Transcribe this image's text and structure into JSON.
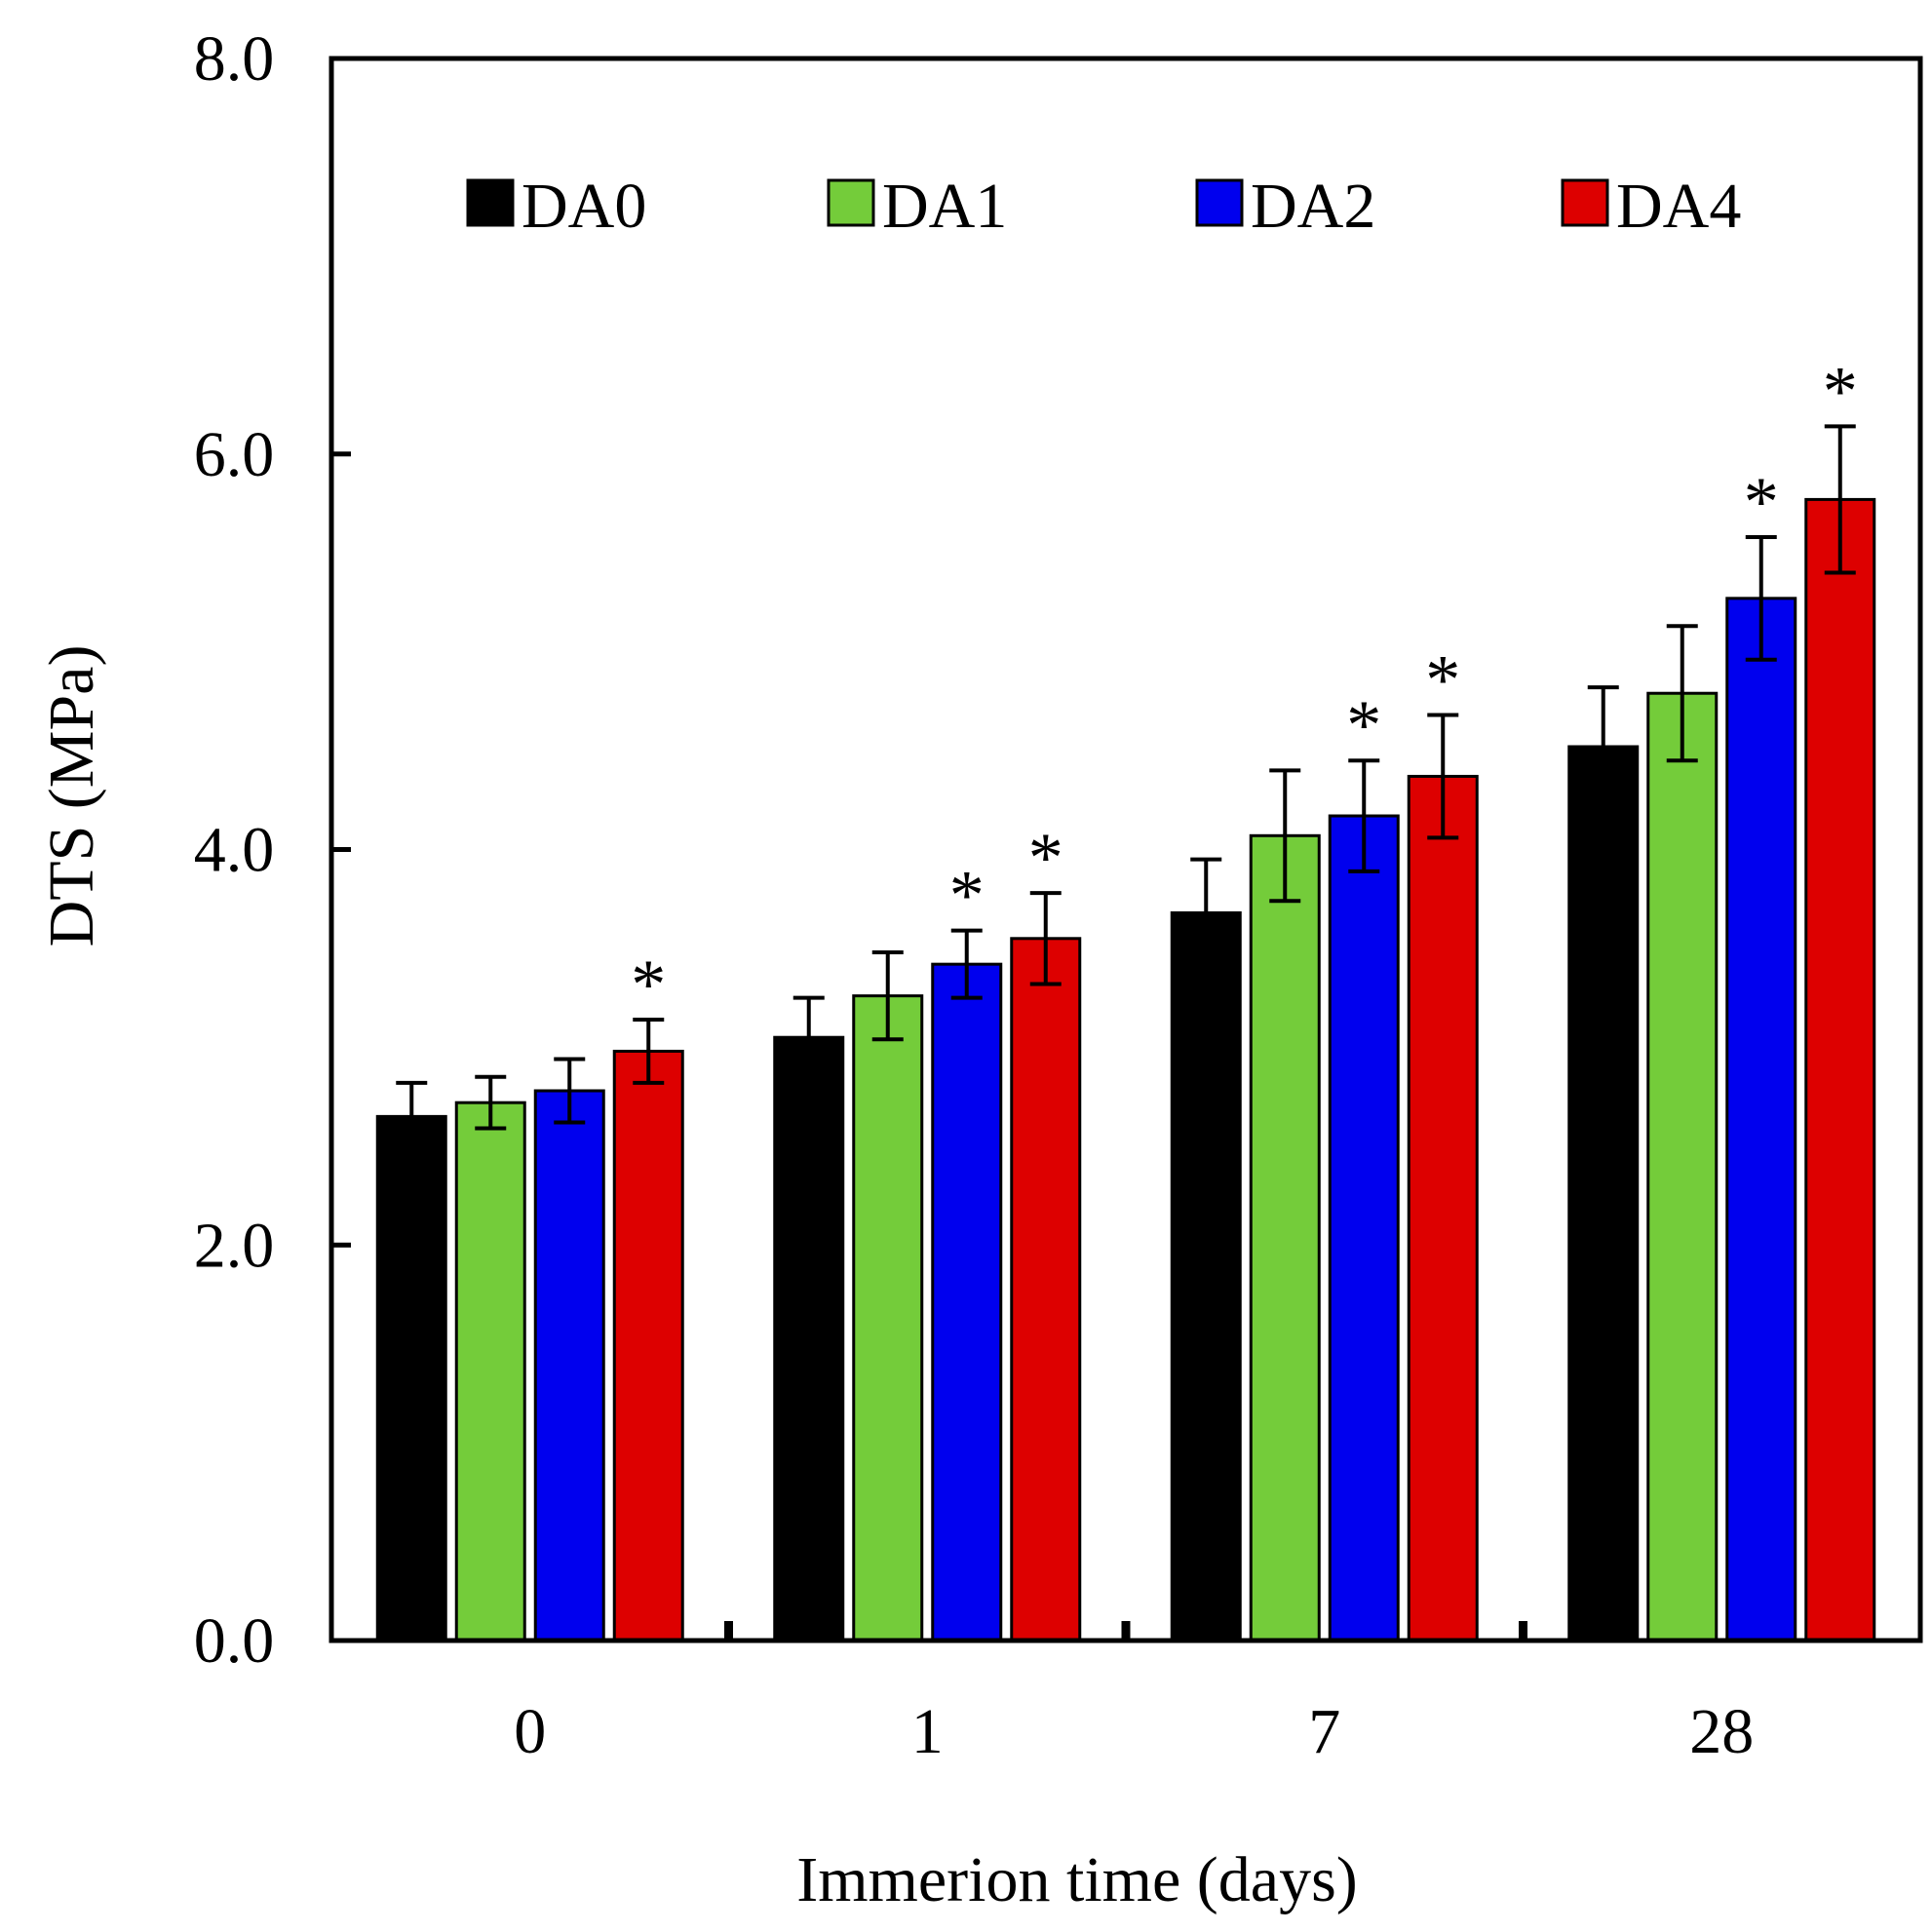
{
  "chart_data": {
    "type": "bar",
    "title": "",
    "xlabel": "Immerion time (days)",
    "ylabel": "DTS (MPa)",
    "ylim": [
      0,
      8
    ],
    "y_ticks": [
      "0.0",
      "2.0",
      "4.0",
      "6.0",
      "8.0"
    ],
    "categories": [
      "0",
      "1",
      "7",
      "28"
    ],
    "series": [
      {
        "name": "DA0",
        "color": "#000000",
        "values": [
          2.65,
          3.05,
          3.68,
          4.52
        ],
        "errors": [
          0.17,
          0.2,
          0.27,
          0.3
        ],
        "significant": [
          false,
          false,
          false,
          false
        ]
      },
      {
        "name": "DA1",
        "color": "#74cc3a",
        "values": [
          2.72,
          3.26,
          4.07,
          4.79
        ],
        "errors": [
          0.13,
          0.22,
          0.33,
          0.34
        ],
        "significant": [
          false,
          false,
          false,
          false
        ]
      },
      {
        "name": "DA2",
        "color": "#0000ee",
        "values": [
          2.78,
          3.42,
          4.17,
          5.27
        ],
        "errors": [
          0.16,
          0.17,
          0.28,
          0.31
        ],
        "significant": [
          false,
          true,
          true,
          true
        ]
      },
      {
        "name": "DA4",
        "color": "#dd0000",
        "values": [
          2.98,
          3.55,
          4.37,
          5.77
        ],
        "errors": [
          0.16,
          0.23,
          0.31,
          0.37
        ],
        "significant": [
          true,
          true,
          true,
          true
        ]
      }
    ],
    "significance_marker": "*",
    "legend_position": "top",
    "grid": false
  }
}
